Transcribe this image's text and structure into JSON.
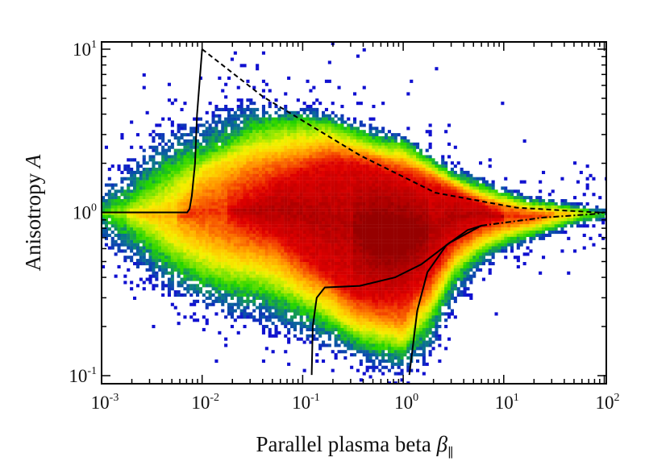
{
  "chart_data": {
    "type": "heatmap",
    "title": "",
    "xlabel_text": "Parallel plasma beta",
    "xlabel_symbol": "β",
    "xlabel_subscript": "∥",
    "ylabel_text": "Anisotropy",
    "ylabel_symbol": "A",
    "x_scale": "log",
    "y_scale": "log",
    "xlim": [
      0.001,
      100
    ],
    "ylim": [
      0.1,
      10
    ],
    "grid": false,
    "legend": "none",
    "x_ticks": [
      {
        "value": 0.001,
        "base": "10",
        "exp": "-3"
      },
      {
        "value": 0.01,
        "base": "10",
        "exp": "-2"
      },
      {
        "value": 0.1,
        "base": "10",
        "exp": "-1"
      },
      {
        "value": 1,
        "base": "10",
        "exp": "0"
      },
      {
        "value": 10,
        "base": "10",
        "exp": "1"
      },
      {
        "value": 100,
        "base": "10",
        "exp": "2"
      }
    ],
    "y_ticks": [
      {
        "value": 0.1,
        "base": "10",
        "exp": "-1"
      },
      {
        "value": 1,
        "base": "10",
        "exp": "0"
      },
      {
        "value": 10,
        "base": "10",
        "exp": "1"
      }
    ],
    "density_levels": [
      {
        "name": "lowest",
        "color": "#1414d2"
      },
      {
        "name": "low",
        "color": "#22d400"
      },
      {
        "name": "medium",
        "color": "#f4f000"
      },
      {
        "name": "high",
        "color": "#ff8a00"
      },
      {
        "name": "higher",
        "color": "#e40000"
      },
      {
        "name": "highest",
        "color": "#960000"
      }
    ],
    "density_envelopes": [
      {
        "beta": 0.001,
        "A_ranges": [
          [
            0.66,
            1.48
          ],
          null,
          null,
          null,
          null,
          null
        ]
      },
      {
        "beta": 0.0018,
        "A_ranges": [
          [
            0.48,
            2.0
          ],
          [
            0.83,
            1.17
          ],
          null,
          null,
          null,
          null
        ]
      },
      {
        "beta": 0.0032,
        "A_ranges": [
          [
            0.36,
            2.95
          ],
          [
            0.63,
            1.48
          ],
          [
            0.85,
            1.07
          ],
          null,
          null,
          null
        ]
      },
      {
        "beta": 0.0056,
        "A_ranges": [
          [
            0.29,
            3.55
          ],
          [
            0.48,
            1.95
          ],
          [
            0.66,
            1.32
          ],
          null,
          null,
          null
        ]
      },
      {
        "beta": 0.01,
        "A_ranges": [
          [
            0.25,
            4.07
          ],
          [
            0.4,
            2.24
          ],
          [
            0.54,
            1.86
          ],
          [
            0.79,
            1.32
          ],
          null,
          null
        ]
      },
      {
        "beta": 0.018,
        "A_ranges": [
          [
            0.22,
            4.79
          ],
          [
            0.36,
            2.63
          ],
          [
            0.48,
            2.19
          ],
          [
            0.66,
            1.58
          ],
          null,
          null
        ]
      },
      {
        "beta": 0.032,
        "A_ranges": [
          [
            0.2,
            5.13
          ],
          [
            0.34,
            3.31
          ],
          [
            0.45,
            2.45
          ],
          [
            0.6,
            1.95
          ],
          [
            0.83,
            1.23
          ],
          null
        ]
      },
      {
        "beta": 0.056,
        "A_ranges": [
          [
            0.18,
            4.57
          ],
          [
            0.3,
            3.55
          ],
          [
            0.4,
            2.63
          ],
          [
            0.54,
            2.09
          ],
          [
            0.72,
            1.55
          ],
          null
        ]
      },
      {
        "beta": 0.1,
        "A_ranges": [
          [
            0.16,
            4.47
          ],
          [
            0.26,
            3.72
          ],
          [
            0.32,
            2.82
          ],
          [
            0.41,
            2.24
          ],
          [
            0.54,
            1.78
          ],
          null
        ]
      },
      {
        "beta": 0.18,
        "A_ranges": [
          [
            0.14,
            4.27
          ],
          [
            0.21,
            3.55
          ],
          [
            0.26,
            2.95
          ],
          [
            0.34,
            2.45
          ],
          [
            0.41,
            2.0
          ],
          null
        ]
      },
      {
        "beta": 0.32,
        "A_ranges": [
          [
            0.12,
            3.72
          ],
          [
            0.17,
            3.16
          ],
          [
            0.2,
            2.63
          ],
          [
            0.25,
            2.34
          ],
          [
            0.32,
            2.0
          ],
          null
        ]
      },
      {
        "beta": 0.56,
        "A_ranges": [
          [
            0.105,
            3.47
          ],
          [
            0.15,
            2.75
          ],
          [
            0.19,
            2.34
          ],
          [
            0.22,
            2.19
          ],
          [
            0.29,
            1.86
          ],
          [
            0.54,
            0.98
          ]
        ]
      },
      {
        "beta": 1,
        "A_ranges": [
          [
            0.1,
            3.09
          ],
          [
            0.14,
            2.63
          ],
          [
            0.17,
            2.24
          ],
          [
            0.21,
            2.0
          ],
          [
            0.3,
            1.66
          ],
          [
            0.54,
            0.93
          ]
        ]
      },
      {
        "beta": 1.8,
        "A_ranges": [
          [
            0.12,
            2.45
          ],
          [
            0.21,
            2.09
          ],
          [
            0.26,
            1.86
          ],
          [
            0.32,
            1.74
          ],
          [
            0.41,
            1.48
          ],
          null
        ]
      },
      {
        "beta": 3.2,
        "A_ranges": [
          [
            0.25,
            2.0
          ],
          [
            0.4,
            1.66
          ],
          [
            0.48,
            1.55
          ],
          [
            0.56,
            1.45
          ],
          [
            0.69,
            1.32
          ],
          null
        ]
      },
      {
        "beta": 5.6,
        "A_ranges": [
          [
            0.4,
            1.74
          ],
          [
            0.56,
            1.45
          ],
          [
            0.63,
            1.32
          ],
          [
            0.72,
            1.23
          ],
          [
            0.83,
            1.15
          ],
          null
        ]
      },
      {
        "beta": 10,
        "A_ranges": [
          [
            0.56,
            1.45
          ],
          [
            0.66,
            1.29
          ],
          [
            0.74,
            1.17
          ],
          [
            0.81,
            1.1
          ],
          null,
          null
        ]
      },
      {
        "beta": 18,
        "A_ranges": [
          [
            0.63,
            1.29
          ],
          [
            0.74,
            1.15
          ],
          [
            0.81,
            1.07
          ],
          [
            0.87,
            1.02
          ],
          null,
          null
        ]
      },
      {
        "beta": 32,
        "A_ranges": [
          [
            0.72,
            1.23
          ],
          [
            0.81,
            1.1
          ],
          [
            0.89,
            1.05
          ],
          null,
          null,
          null
        ]
      },
      {
        "beta": 56,
        "A_ranges": [
          [
            0.81,
            1.15
          ],
          [
            0.91,
            1.05
          ],
          null,
          null,
          null,
          null
        ]
      },
      {
        "beta": 100,
        "A_ranges": [
          [
            0.89,
            1.07
          ],
          null,
          null,
          null,
          null,
          null
        ]
      }
    ],
    "curves": [
      {
        "style": "solid",
        "points": [
          [
            0.001,
            1
          ],
          [
            0.0071,
            1
          ],
          [
            0.0075,
            1.05
          ],
          [
            0.0079,
            1.26
          ],
          [
            0.0085,
            2.0
          ],
          [
            0.0089,
            3.98
          ],
          [
            0.01,
            10
          ]
        ]
      },
      {
        "style": "dashed",
        "points": [
          [
            0.01,
            10
          ],
          [
            0.04,
            5.13
          ],
          [
            0.37,
            2.24
          ],
          [
            2.09,
            1.32
          ],
          [
            13.2,
            1.07
          ],
          [
            83,
            1.0
          ],
          [
            100,
            1.0
          ]
        ]
      },
      {
        "style": "dashdot",
        "points": [
          [
            6.0,
            0.83
          ],
          [
            24.5,
            0.93
          ],
          [
            83,
            0.98
          ],
          [
            100,
            1.0
          ]
        ]
      },
      {
        "style": "solid",
        "points": [
          [
            0.123,
            0.101
          ],
          [
            0.126,
            0.2
          ],
          [
            0.138,
            0.3
          ],
          [
            0.166,
            0.347
          ],
          [
            0.37,
            0.355
          ],
          [
            0.83,
            0.4
          ],
          [
            1.51,
            0.48
          ],
          [
            2.88,
            0.65
          ],
          [
            6.0,
            0.83
          ]
        ]
      },
      {
        "style": "solid",
        "points": [
          [
            1.15,
            0.101
          ],
          [
            1.38,
            0.25
          ],
          [
            1.74,
            0.43
          ],
          [
            2.69,
            0.63
          ],
          [
            4.37,
            0.78
          ],
          [
            6.0,
            0.83
          ]
        ]
      }
    ]
  }
}
